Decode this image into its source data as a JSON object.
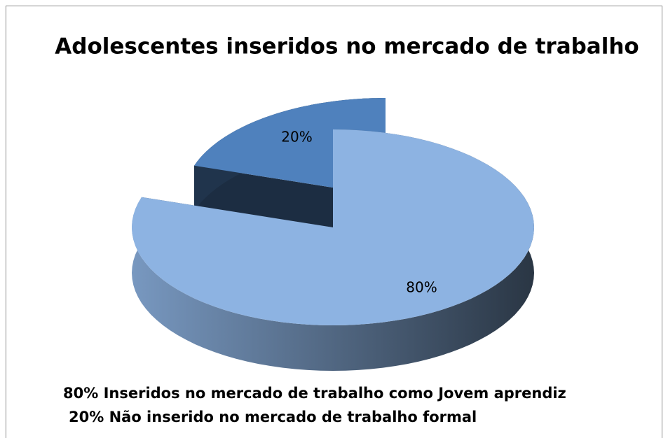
{
  "chart_data": {
    "type": "pie",
    "title": "Adolescentes inseridos no mercado de trabalho",
    "values": [
      80,
      20
    ],
    "value_labels": [
      "80%",
      "20%"
    ],
    "colors": [
      "#8db3e2",
      "#4f81bd"
    ],
    "annotations": [
      "80% Inseridos no mercado de trabalho como Jovem aprendiz",
      "20% Não inserido no mercado de trabalho formal"
    ]
  }
}
